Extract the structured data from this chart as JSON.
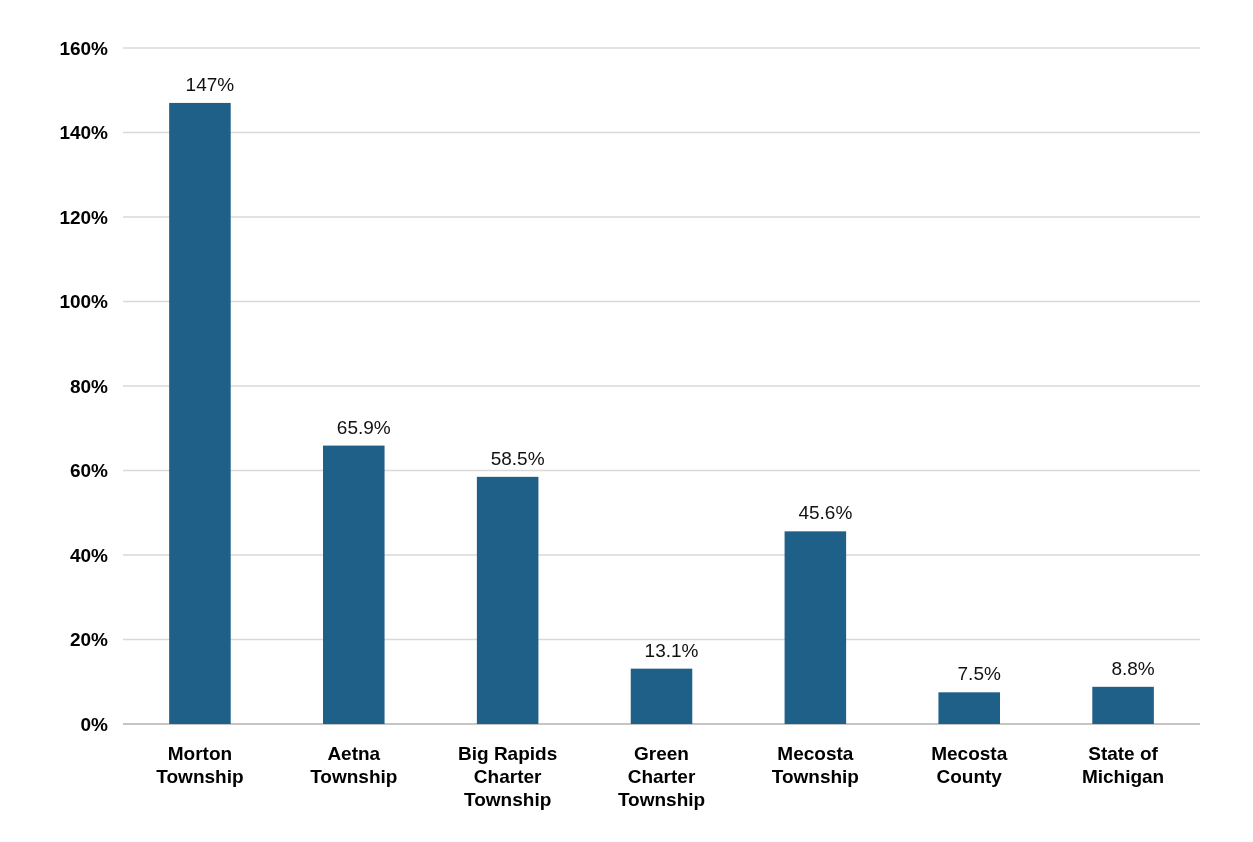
{
  "chart_data": {
    "type": "bar",
    "categories": [
      "Morton Township",
      "Aetna Township",
      "Big Rapids Charter Township",
      "Green Charter Township",
      "Mecosta Township",
      "Mecosta County",
      "State of Michigan"
    ],
    "values": [
      147,
      65.9,
      58.5,
      13.1,
      45.6,
      7.5,
      8.8
    ],
    "value_labels": [
      "147%",
      "65.9%",
      "58.5%",
      "13.1%",
      "45.6%",
      "7.5%",
      "8.8%"
    ],
    "color": "#1f6088",
    "ylim": [
      0,
      160
    ],
    "yticks": [
      {
        "value": 0,
        "label": "0%"
      },
      {
        "value": 20,
        "label": "20%"
      },
      {
        "value": 40,
        "label": "40%"
      },
      {
        "value": 60,
        "label": "60%"
      },
      {
        "value": 80,
        "label": "80%"
      },
      {
        "value": 100,
        "label": "100%"
      },
      {
        "value": 120,
        "label": "120%"
      },
      {
        "value": 140,
        "label": "140%"
      },
      {
        "value": 160,
        "label": "160%"
      }
    ],
    "grid": true
  }
}
